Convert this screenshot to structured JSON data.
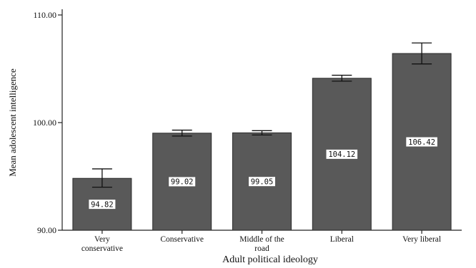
{
  "chart_data": {
    "type": "bar",
    "categories": [
      [
        "Very",
        "conservative"
      ],
      [
        "Conservative"
      ],
      [
        "Middle of the",
        "road"
      ],
      [
        "Liberal"
      ],
      [
        "Very liberal"
      ]
    ],
    "values": [
      94.82,
      99.02,
      99.05,
      104.12,
      106.42
    ],
    "value_labels": [
      "94.82",
      "99.02",
      "99.05",
      "104.12",
      "106.42"
    ],
    "error_bars": [
      {
        "low": 94.0,
        "high": 95.7
      },
      {
        "low": 98.75,
        "high": 99.3
      },
      {
        "low": 98.85,
        "high": 99.25
      },
      {
        "low": 103.85,
        "high": 104.4
      },
      {
        "low": 105.45,
        "high": 107.4
      }
    ],
    "xlabel": "Adult political ideology",
    "ylabel": "Mean adolescent intelligence",
    "ylim": [
      90,
      110
    ],
    "yticks": [
      "90.00",
      "100.00",
      "110.00"
    ],
    "yticks_values": [
      90,
      100,
      110
    ],
    "bar_color": "#595959",
    "grid": false,
    "legend": "none"
  }
}
